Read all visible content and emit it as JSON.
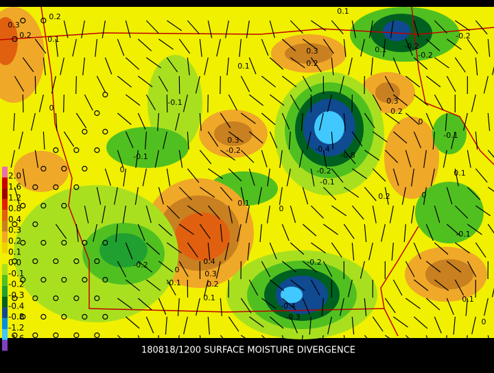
{
  "title": "180818/1200 SURFACE MOISTURE DIVERGENCE",
  "legend": [
    {
      "label": "2.0",
      "color": "#e870b0"
    },
    {
      "label": "1.6",
      "color": "#c80000"
    },
    {
      "label": "1.2",
      "color": "#a00000"
    },
    {
      "label": "0.8",
      "color": "#e02000"
    },
    {
      "label": "0.4",
      "color": "#e06010"
    },
    {
      "label": "0.3",
      "color": "#c88020"
    },
    {
      "label": "0.2",
      "color": "#f0a828"
    },
    {
      "label": "0.1",
      "color": "#f0d000"
    },
    {
      "label": "0.0",
      "color": "#f0f000"
    },
    {
      "label": "-0.1",
      "color": "#a8e020"
    },
    {
      "label": "-0.2",
      "color": "#50c020"
    },
    {
      "label": "-0.3",
      "color": "#20a030"
    },
    {
      "label": "-0.4",
      "color": "#006020"
    },
    {
      "label": "-0.8",
      "color": "#104a90"
    },
    {
      "label": "-1.2",
      "color": "#0090e0"
    },
    {
      "label": "-1.6",
      "color": "#40c8ff"
    }
  ],
  "map_labels": [
    "0.3",
    "0.2",
    "0.2",
    "0.1",
    "0.1",
    "0.3",
    "0.2",
    "0.1",
    "-0.2",
    "-0.2",
    "-0.2",
    "0.1",
    "-0.1",
    "0.3",
    "0.2",
    "0",
    "-0.1",
    "0.3",
    "-0.2",
    "-0.1",
    "-0.4",
    "-0.8",
    "-0.2",
    "-0.1",
    "0.1",
    "0.2",
    "0",
    "0.1",
    "0",
    "-0.1",
    "-0.2",
    "0",
    "0.4",
    "0.3",
    "0.2",
    "-0.1",
    "0.1",
    "-0.2",
    "-0.4",
    "-0.3",
    "0.1",
    "0",
    "0",
    "0"
  ]
}
